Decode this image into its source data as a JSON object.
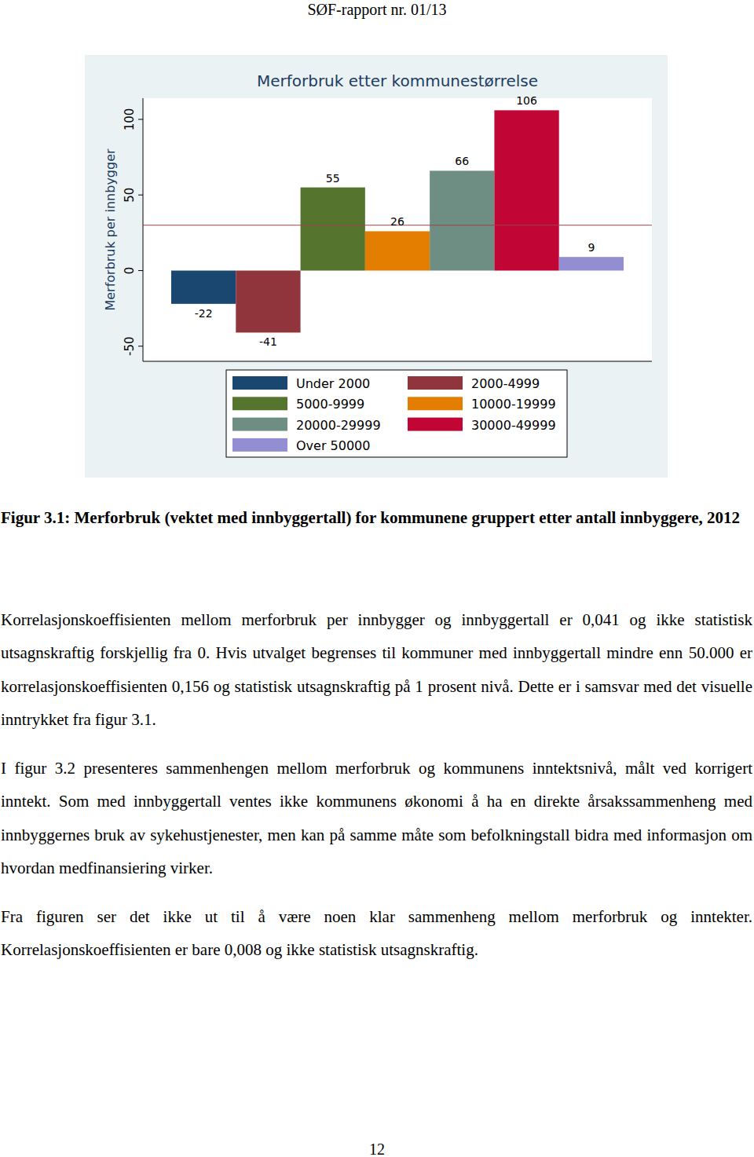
{
  "header": "SØF-rapport nr. 01/13",
  "chart_data": {
    "type": "bar",
    "title": "Merforbruk etter kommunestørrelse",
    "ylabel": "Merforbruk per innbygger",
    "categories": [
      "Under 2000",
      "2000-4999",
      "5000-9999",
      "10000-19999",
      "20000-29999",
      "30000-49999",
      "Over 50000"
    ],
    "values": [
      -22,
      -41,
      55,
      26,
      66,
      106,
      9
    ],
    "colors": [
      "#1a476f",
      "#90353b",
      "#55752f",
      "#e37e00",
      "#6e8e84",
      "#c10534",
      "#938dd2"
    ],
    "reference_line": 30,
    "ylim": [
      -60,
      114
    ],
    "yticks": [
      -50,
      0,
      50,
      100
    ],
    "grid": false,
    "legend": "bottom",
    "data_labels": true,
    "tick_labels": "y"
  },
  "caption": "Figur 3.1: Merforbruk (vektet med innbyggertall) for kommunene gruppert etter antall innbyggere, 2012",
  "paragraphs": [
    "Korrelasjonskoeffisienten mellom merforbruk per innbygger og innbyggertall er 0,041 og ikke statistisk utsagnskraftig forskjellig fra 0. Hvis utvalget begrenses til kommuner med innbyggertall mindre enn 50.000 er korrelasjonskoeffisienten 0,156 og statistisk utsagnskraftig på 1 prosent nivå. Dette er i samsvar med det visuelle inntrykket fra figur 3.1.",
    "I figur 3.2 presenteres sammenhengen mellom merforbruk og kommunens inntektsnivå, målt ved korrigert inntekt. Som med innbyggertall ventes ikke kommunens økonomi å ha en direkte årsakssammenheng med innbyggernes bruk av sykehustjenester, men kan på samme måte som befolkningstall bidra med informasjon om hvordan medfinansiering virker.",
    "Fra figuren ser det ikke ut til å være noen klar sammenheng mellom merforbruk og inntekter. Korrelasjonskoeffisienten er bare 0,008 og ikke statistisk utsagnskraftig."
  ],
  "page_number": "12"
}
